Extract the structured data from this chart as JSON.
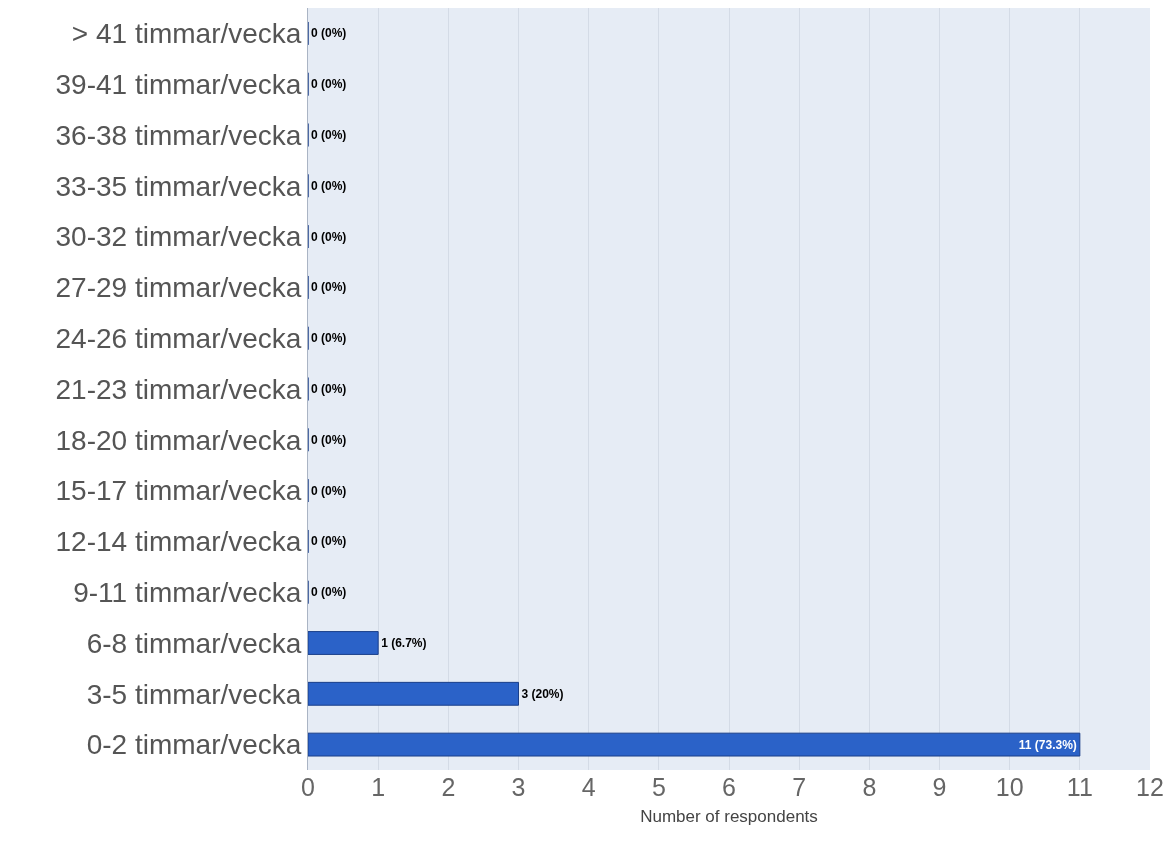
{
  "chart_data": {
    "type": "bar",
    "orientation": "horizontal",
    "xlabel": "Number of respondents",
    "categories": [
      "> 41 timmar/vecka",
      "39-41 timmar/vecka",
      "36-38 timmar/vecka",
      "33-35 timmar/vecka",
      "30-32 timmar/vecka",
      "27-29 timmar/vecka",
      "24-26 timmar/vecka",
      "21-23 timmar/vecka",
      "18-20 timmar/vecka",
      "15-17 timmar/vecka",
      "12-14 timmar/vecka",
      "9-11 timmar/vecka",
      "6-8 timmar/vecka",
      "3-5 timmar/vecka",
      "0-2 timmar/vecka"
    ],
    "values": [
      0,
      0,
      0,
      0,
      0,
      0,
      0,
      0,
      0,
      0,
      0,
      0,
      1,
      3,
      11
    ],
    "value_labels": [
      "0 (0%)",
      "0 (0%)",
      "0 (0%)",
      "0 (0%)",
      "0 (0%)",
      "0 (0%)",
      "0 (0%)",
      "0 (0%)",
      "0 (0%)",
      "0 (0%)",
      "0 (0%)",
      "0 (0%)",
      "1 (6.7%)",
      "3 (20%)",
      "11 (73.3%)"
    ],
    "color": "#2b62c8",
    "xlim": [
      0,
      12
    ],
    "xticks": [
      0,
      1,
      2,
      3,
      4,
      5,
      6,
      7,
      8,
      9,
      10,
      11,
      12
    ],
    "grid": "x"
  }
}
